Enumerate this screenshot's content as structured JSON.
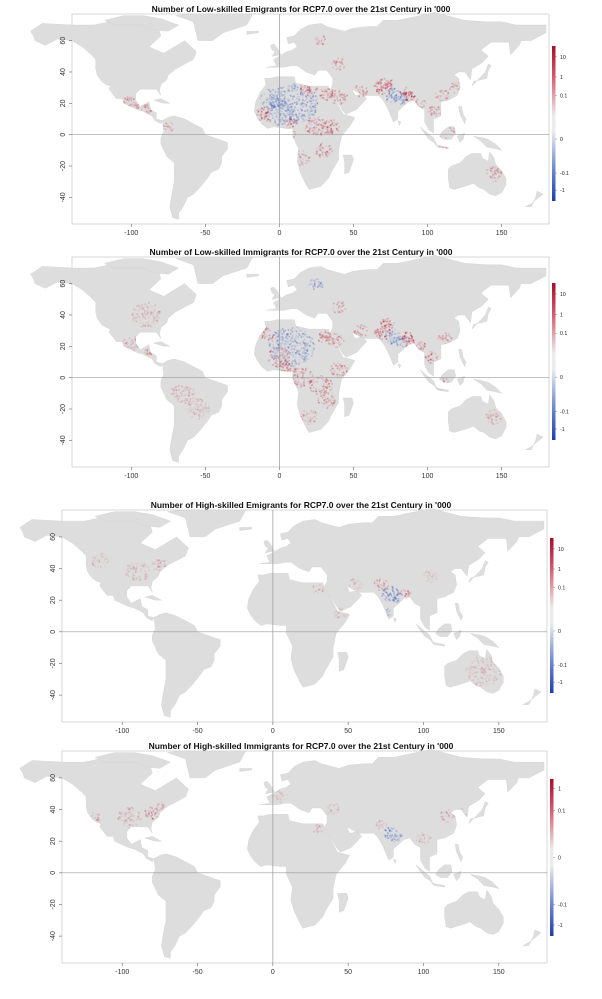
{
  "x_ticks": [
    "-100",
    "-50",
    "0",
    "50",
    "100",
    "150"
  ],
  "y_ticks": [
    "60",
    "40",
    "20",
    "0",
    "-20",
    "-40"
  ],
  "colors": {
    "positive": "#b2182b",
    "neutral": "#dedede",
    "negative": "#2c4fb0",
    "land": "#dddddd",
    "panel_border": "#bdbdbd",
    "axis_line": "#9a9a9a"
  },
  "panels": [
    {
      "title": "Number of Low-skilled Emigrants for RCP7.0 over the 21st Century in '000",
      "legend_labels": [
        "10",
        "1",
        "0.1",
        "0",
        "-0.1",
        "-1"
      ],
      "legend_values": [
        10,
        1,
        0.1,
        0,
        -0.1,
        -1
      ]
    },
    {
      "title": "Number of Low-skilled Immigrants for RCP7.0 over the 21st Century in '000",
      "legend_labels": [
        "10",
        "1",
        "0.1",
        "0",
        "-0.1",
        "-1"
      ],
      "legend_values": [
        10,
        1,
        0.1,
        0,
        -0.1,
        -1
      ]
    },
    {
      "title": "Number of High-skilled Emigrants for RCP7.0 over the 21st Century in '000",
      "legend_labels": [
        "10",
        "1",
        "0.1",
        "0",
        "-0.1",
        "-1"
      ],
      "legend_values": [
        10,
        1,
        0.1,
        0,
        -0.1,
        -1
      ]
    },
    {
      "title": "Number of High-skilled Immigrants for RCP7.0 over the 21st Century in '000",
      "legend_labels": [
        "1",
        "0.1",
        "0",
        "-0.1",
        "-1"
      ],
      "legend_values": [
        1,
        0.1,
        0,
        -0.1,
        -1
      ]
    }
  ]
}
